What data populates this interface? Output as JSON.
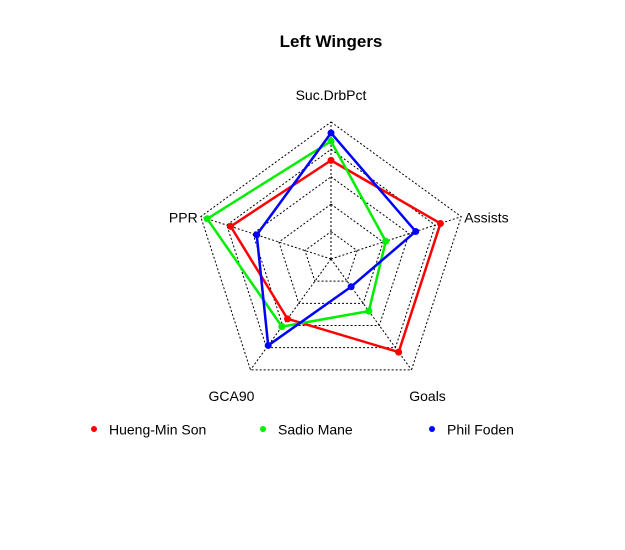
{
  "chart_data": {
    "type": "radar",
    "title": "Left Wingers",
    "axes": [
      "Suc.DrbPct",
      "Assists",
      "Goals",
      "GCA90",
      "PPR"
    ],
    "rmax": 1,
    "grid_levels": 5,
    "grid": true,
    "legend_position": "bottom",
    "series": [
      {
        "name": "Hueng-Min Son",
        "color": "#ff0000",
        "values": [
          0.72,
          0.84,
          0.84,
          0.54,
          0.77
        ]
      },
      {
        "name": "Sadio Mane",
        "color": "#00ee00",
        "values": [
          0.86,
          0.42,
          0.47,
          0.61,
          0.95
        ]
      },
      {
        "name": "Phil Foden",
        "color": "#0000ff",
        "values": [
          0.92,
          0.65,
          0.25,
          0.78,
          0.57
        ]
      }
    ]
  }
}
